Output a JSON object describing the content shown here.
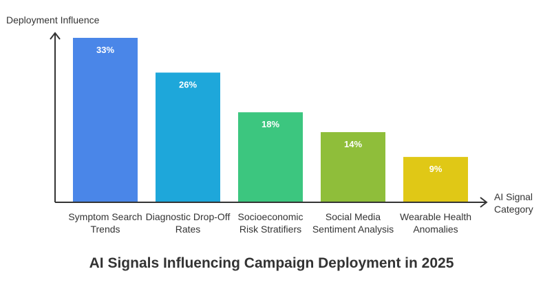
{
  "chart_data": {
    "type": "bar",
    "title": "AI Signals Influencing Campaign Deployment in 2025",
    "ylabel": "Deployment Influence",
    "xlabel": "AI Signal Category",
    "categories": [
      "Symptom Search Trends",
      "Diagnostic Drop-Off Rates",
      "Socioeconomic Risk Stratifiers",
      "Social Media Sentiment Analysis",
      "Wearable Health Anomalies"
    ],
    "values": [
      33,
      26,
      18,
      14,
      9
    ],
    "value_labels": [
      "33%",
      "26%",
      "18%",
      "14%",
      "9%"
    ],
    "colors": [
      "#4A86E8",
      "#1EA7DA",
      "#3CC67F",
      "#8FBE3A",
      "#E0C816"
    ],
    "ylim": [
      0,
      33
    ],
    "grid": false,
    "legend": "none"
  }
}
